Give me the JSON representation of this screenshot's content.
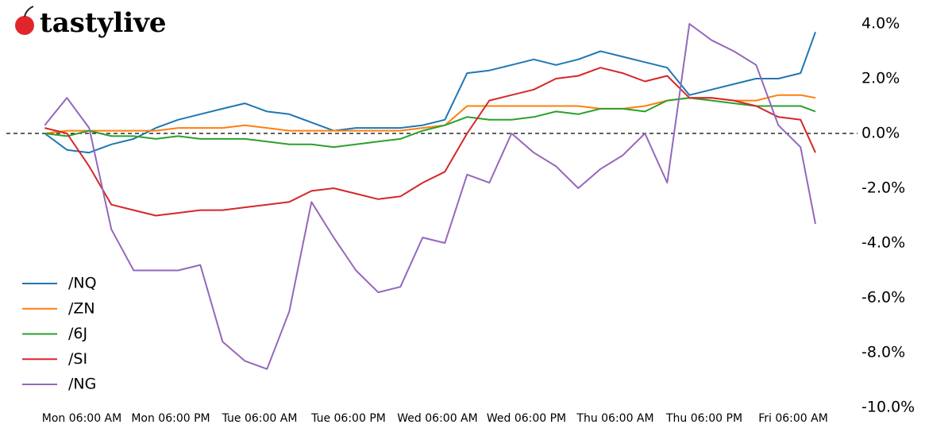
{
  "brand": "tastylive",
  "chart_data": {
    "type": "line",
    "x": [
      1,
      4,
      7,
      10,
      13,
      16,
      19,
      22,
      25,
      28,
      31,
      34,
      37,
      40,
      43,
      46,
      49,
      52,
      55,
      58,
      61,
      64,
      67,
      70,
      73,
      76,
      79,
      82,
      85,
      88,
      91,
      94,
      97,
      100,
      103,
      105
    ],
    "xlim": [
      1,
      105
    ],
    "xticks": [
      {
        "value": 6,
        "label": "Mon 06:00 AM"
      },
      {
        "value": 18,
        "label": "Mon 06:00 PM"
      },
      {
        "value": 30,
        "label": "Tue 06:00 AM"
      },
      {
        "value": 42,
        "label": "Tue 06:00 PM"
      },
      {
        "value": 54,
        "label": "Wed 06:00 AM"
      },
      {
        "value": 66,
        "label": "Wed 06:00 PM"
      },
      {
        "value": 78,
        "label": "Thu 06:00 AM"
      },
      {
        "value": 90,
        "label": "Thu 06:00 PM"
      },
      {
        "value": 102,
        "label": "Fri 06:00 AM"
      }
    ],
    "ylim": [
      -10.0,
      4.8
    ],
    "yticks": [
      {
        "value": 4,
        "label": "4.0%"
      },
      {
        "value": 2,
        "label": "2.0%"
      },
      {
        "value": 0,
        "label": "0.0%"
      },
      {
        "value": -2,
        "label": "-2.0%"
      },
      {
        "value": -4,
        "label": "-4.0%"
      },
      {
        "value": -6,
        "label": "-6.0%"
      },
      {
        "value": -8,
        "label": "-8.0%"
      },
      {
        "value": -10,
        "label": "-10.0%"
      }
    ],
    "legend": "lower left",
    "series": [
      {
        "name": "/NQ",
        "color": "#1f77b4",
        "values": [
          0,
          -0.6,
          -0.7,
          -0.4,
          -0.2,
          0.2,
          0.5,
          0.7,
          0.9,
          1.1,
          0.8,
          0.7,
          0.4,
          0.1,
          0.2,
          0.2,
          0.2,
          0.3,
          0.5,
          2.2,
          2.3,
          2.5,
          2.7,
          2.5,
          2.7,
          3.0,
          2.8,
          2.6,
          2.4,
          1.4,
          1.6,
          1.8,
          2.0,
          2.0,
          2.2,
          3.7
        ]
      },
      {
        "name": "/ZN",
        "color": "#ff7f0e",
        "values": [
          0,
          0.1,
          0.1,
          0.1,
          0.1,
          0.1,
          0.2,
          0.2,
          0.2,
          0.3,
          0.2,
          0.1,
          0.1,
          0.1,
          0.1,
          0.1,
          0.1,
          0.2,
          0.3,
          1.0,
          1.0,
          1.0,
          1.0,
          1.0,
          1.0,
          0.9,
          0.9,
          1.0,
          1.2,
          1.3,
          1.3,
          1.2,
          1.2,
          1.4,
          1.4,
          1.3
        ]
      },
      {
        "name": "/6J",
        "color": "#2ca02c",
        "values": [
          0,
          -0.1,
          0.1,
          -0.1,
          -0.1,
          -0.2,
          -0.1,
          -0.2,
          -0.2,
          -0.2,
          -0.3,
          -0.4,
          -0.4,
          -0.5,
          -0.4,
          -0.3,
          -0.2,
          0.1,
          0.3,
          0.6,
          0.5,
          0.5,
          0.6,
          0.8,
          0.7,
          0.9,
          0.9,
          0.8,
          1.2,
          1.3,
          1.2,
          1.1,
          1.0,
          1.0,
          1.0,
          0.8
        ]
      },
      {
        "name": "/SI",
        "color": "#d62728",
        "values": [
          0.2,
          0.0,
          -1.2,
          -2.6,
          -2.8,
          -3.0,
          -2.9,
          -2.8,
          -2.8,
          -2.7,
          -2.6,
          -2.5,
          -2.1,
          -2.0,
          -2.2,
          -2.4,
          -2.3,
          -1.8,
          -1.4,
          0.0,
          1.2,
          1.4,
          1.6,
          2.0,
          2.1,
          2.4,
          2.2,
          1.9,
          2.1,
          1.3,
          1.3,
          1.2,
          1.0,
          0.6,
          0.5,
          -0.7
        ]
      },
      {
        "name": "/NG",
        "color": "#9467bd",
        "values": [
          0.3,
          1.3,
          0.2,
          -3.5,
          -5.0,
          -5.0,
          -5.0,
          -4.8,
          -7.6,
          -8.3,
          -8.6,
          -6.5,
          -2.5,
          -3.8,
          -5.0,
          -5.8,
          -5.6,
          -3.8,
          -4.0,
          -1.5,
          -1.8,
          0.0,
          -0.7,
          -1.2,
          -2.0,
          -1.3,
          -0.8,
          0.0,
          -1.8,
          4.0,
          3.4,
          3.0,
          2.5,
          0.3,
          -0.5,
          -3.3
        ]
      }
    ]
  }
}
